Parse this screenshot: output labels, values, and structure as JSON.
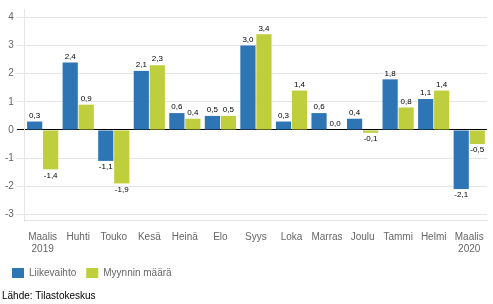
{
  "chart_data": {
    "type": "bar",
    "categories": [
      "Maalis\n2019",
      "Huhti",
      "Touko",
      "Kesä",
      "Heinä",
      "Elo",
      "Syys",
      "Loka",
      "Marras",
      "Joulu",
      "Tammi",
      "Helmi",
      "Maalis\n2020"
    ],
    "series": [
      {
        "name": "Liikevaihto",
        "color": "#2E75B6",
        "values": [
          0.3,
          2.4,
          -1.1,
          2.1,
          0.6,
          0.5,
          3.0,
          0.3,
          0.6,
          0.4,
          1.8,
          1.1,
          -2.1
        ],
        "value_labels": [
          "0,3",
          "2,4",
          "-1,1",
          "2,1",
          "0,6",
          "0,5",
          "3,0",
          "0,3",
          "0,6",
          "0,4",
          "1,8",
          "1,1",
          "-2,1"
        ]
      },
      {
        "name": "Myynnin määrä",
        "color": "#BFCE3C",
        "values": [
          -1.4,
          0.9,
          -1.9,
          2.3,
          0.4,
          0.5,
          3.4,
          1.4,
          0.0,
          -0.1,
          0.8,
          1.4,
          -0.5
        ],
        "value_labels": [
          "-1,4",
          "0,9",
          "-1,9",
          "2,3",
          "0,4",
          "0,5",
          "3,4",
          "1,4",
          "0,0",
          "-0,1",
          "0,8",
          "1,4",
          "-0,5"
        ]
      }
    ],
    "ylim": [
      -3.2,
      4.3
    ],
    "yticks": [
      -3,
      -2,
      -1,
      0,
      1,
      2,
      3,
      4
    ],
    "grid": true,
    "legend": "lower left",
    "data_labels": true,
    "annotations": [
      "Lähde: Tilastokeskus"
    ]
  }
}
